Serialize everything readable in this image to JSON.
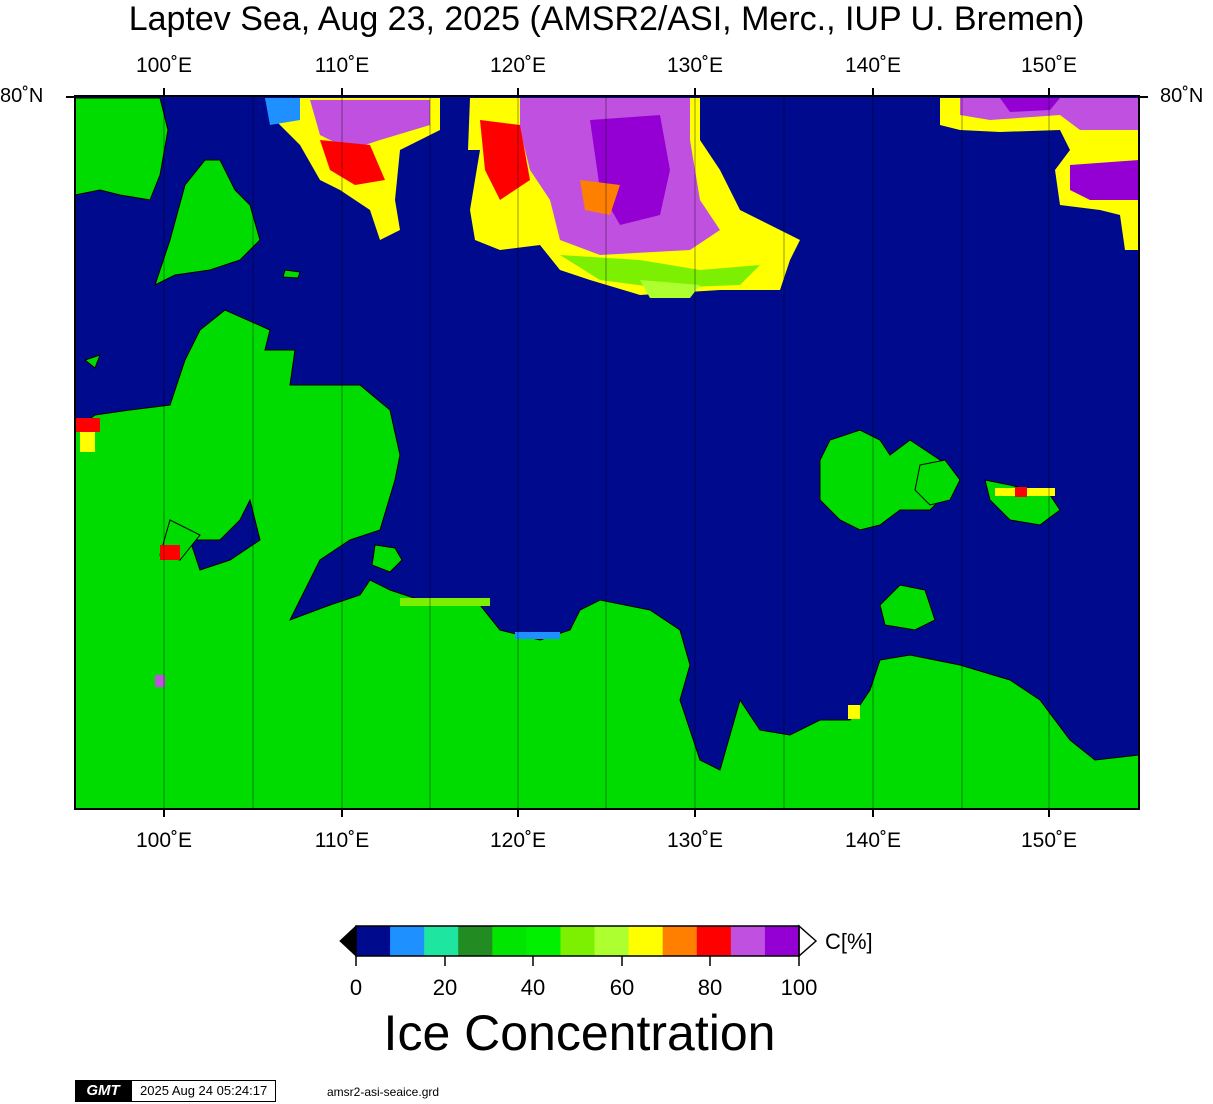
{
  "map": {
    "title": "Laptev Sea, Aug 23, 2025 (AMSR2/ASI, Merc., IUP U. Bremen)",
    "lon_labels": [
      "100˚E",
      "110˚E",
      "120˚E",
      "130˚E",
      "140˚E",
      "150˚E"
    ],
    "lat_labels": [
      "80˚N",
      "80˚N"
    ],
    "colors": {
      "ocean": "#000a8c",
      "land": "#00dc00",
      "grid_line": "#000000"
    }
  },
  "colorbar": {
    "colors": [
      "#000a8c",
      "#1e90ff",
      "#1ee6a0",
      "#228b22",
      "#00e600",
      "#00f000",
      "#7cf000",
      "#adff2f",
      "#ffff00",
      "#ff8000",
      "#ff0000",
      "#c050e0",
      "#9400d3"
    ],
    "tick_labels": [
      "0",
      "20",
      "40",
      "60",
      "80",
      "100"
    ],
    "unit": "C[%]",
    "title": "Ice Concentration"
  },
  "footer": {
    "logo": "GMT",
    "timestamp": "2025 Aug 24 05:24:17",
    "grid_file": "amsr2-asi-seaice.grd"
  }
}
